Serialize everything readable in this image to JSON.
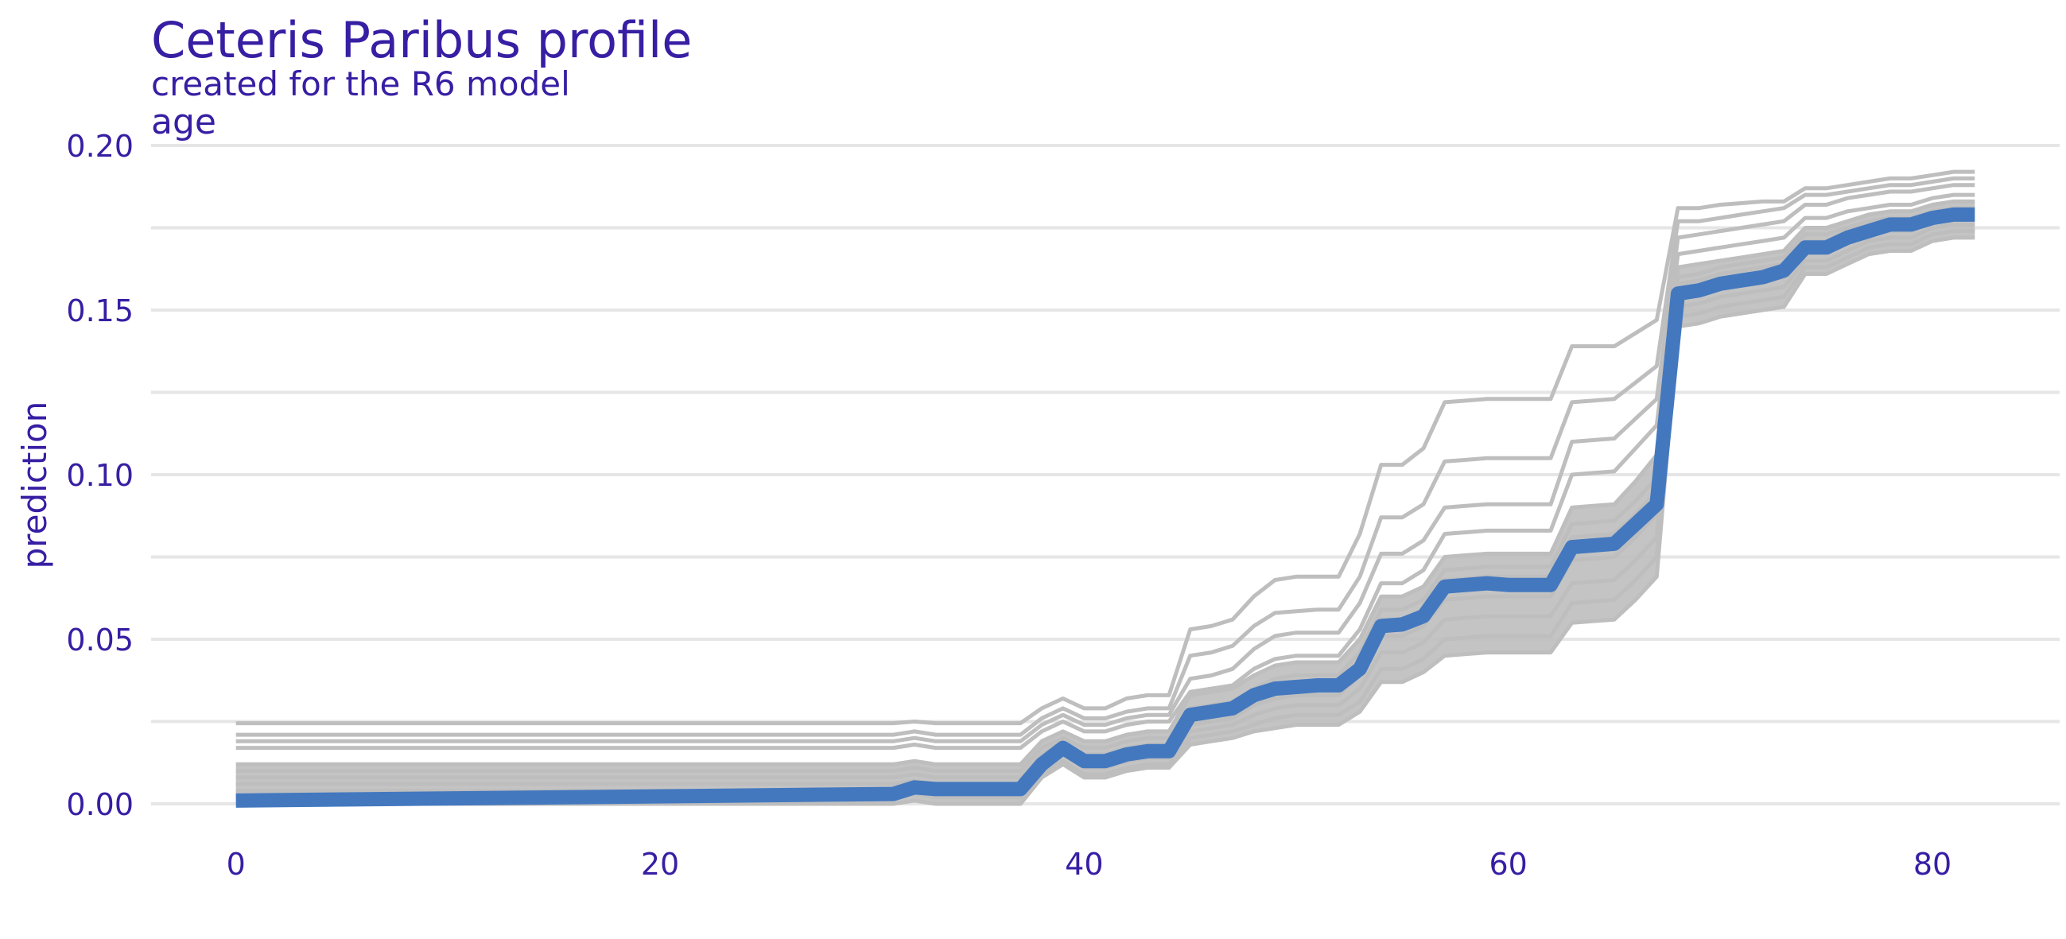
{
  "chart_data": {
    "type": "line",
    "title": "Ceteris Paribus profile",
    "subtitle": "created for the R6 model",
    "facet_label": "age",
    "xlabel": "",
    "ylabel": "prediction",
    "xlim": [
      -4,
      86
    ],
    "ylim": [
      0,
      0.2
    ],
    "x_ticks": [
      "0",
      "20",
      "40",
      "60",
      "80"
    ],
    "y_ticks": [
      "0.00",
      "0.05",
      "0.10",
      "0.15",
      "0.20"
    ],
    "grid": "horizontal",
    "legend": "none",
    "colors": {
      "text": "#371ea3",
      "grid": "#e6e6e6",
      "profiles": "#bebebe",
      "highlight": "#4378bf"
    },
    "x": [
      0,
      31,
      32,
      33,
      37,
      38,
      39,
      40,
      41,
      42,
      43,
      44,
      45,
      46,
      47,
      48,
      49,
      50,
      51,
      52,
      53,
      54,
      55,
      56,
      57,
      58,
      59,
      60,
      61,
      62,
      63,
      64,
      65,
      66,
      67,
      68,
      69,
      70,
      71,
      72,
      73,
      74,
      75,
      76,
      77,
      78,
      79,
      80,
      81,
      82
    ],
    "series": [
      {
        "role": "highlight",
        "values": [
          0.001,
          0.003,
          0.005,
          0.0045,
          0.0045,
          0.012,
          0.017,
          0.013,
          0.013,
          0.015,
          0.016,
          0.016,
          0.027,
          0.028,
          0.029,
          0.033,
          0.035,
          0.0355,
          0.036,
          0.036,
          0.041,
          0.054,
          0.0545,
          0.057,
          0.066,
          0.0665,
          0.067,
          0.0665,
          0.0665,
          0.0665,
          0.078,
          0.0785,
          0.079,
          0.085,
          0.091,
          0.155,
          0.156,
          0.158,
          0.159,
          0.16,
          0.162,
          0.169,
          0.169,
          0.172,
          0.174,
          0.176,
          0.176,
          0.178,
          0.179,
          0.179
        ]
      }
    ],
    "background_profiles": {
      "role": "ceteris-paribus",
      "profiles": [
        [
          0.0245,
          0.0245,
          0.025,
          0.0245,
          0.0245,
          0.029,
          0.032,
          0.029,
          0.029,
          0.032,
          0.033,
          0.033,
          0.053,
          0.054,
          0.056,
          0.063,
          0.068,
          0.069,
          0.069,
          0.069,
          0.082,
          0.103,
          0.103,
          0.108,
          0.122,
          0.1225,
          0.123,
          0.123,
          0.123,
          0.123,
          0.139,
          0.139,
          0.139,
          0.143,
          0.147,
          0.181,
          0.181,
          0.182,
          0.1825,
          0.183,
          0.183,
          0.187,
          0.187,
          0.188,
          0.189,
          0.19,
          0.19,
          0.191,
          0.192,
          0.192
        ],
        [
          0.021,
          0.021,
          0.022,
          0.021,
          0.021,
          0.026,
          0.029,
          0.026,
          0.026,
          0.028,
          0.029,
          0.029,
          0.045,
          0.046,
          0.048,
          0.054,
          0.058,
          0.0585,
          0.059,
          0.059,
          0.069,
          0.087,
          0.087,
          0.091,
          0.104,
          0.1045,
          0.105,
          0.105,
          0.105,
          0.105,
          0.122,
          0.1225,
          0.123,
          0.128,
          0.133,
          0.177,
          0.177,
          0.178,
          0.179,
          0.18,
          0.181,
          0.185,
          0.185,
          0.186,
          0.187,
          0.188,
          0.188,
          0.189,
          0.19,
          0.19
        ],
        [
          0.019,
          0.019,
          0.02,
          0.019,
          0.019,
          0.024,
          0.027,
          0.024,
          0.024,
          0.026,
          0.027,
          0.027,
          0.038,
          0.039,
          0.041,
          0.047,
          0.051,
          0.052,
          0.052,
          0.052,
          0.061,
          0.076,
          0.076,
          0.08,
          0.09,
          0.0905,
          0.091,
          0.091,
          0.091,
          0.091,
          0.11,
          0.1105,
          0.111,
          0.117,
          0.123,
          0.172,
          0.173,
          0.174,
          0.175,
          0.176,
          0.177,
          0.182,
          0.182,
          0.184,
          0.185,
          0.186,
          0.186,
          0.187,
          0.188,
          0.188
        ],
        [
          0.017,
          0.017,
          0.018,
          0.017,
          0.017,
          0.022,
          0.025,
          0.022,
          0.022,
          0.024,
          0.025,
          0.025,
          0.034,
          0.035,
          0.036,
          0.041,
          0.044,
          0.045,
          0.045,
          0.045,
          0.053,
          0.067,
          0.067,
          0.071,
          0.082,
          0.0825,
          0.083,
          0.083,
          0.083,
          0.083,
          0.1,
          0.1005,
          0.101,
          0.108,
          0.115,
          0.167,
          0.168,
          0.169,
          0.17,
          0.171,
          0.172,
          0.178,
          0.178,
          0.18,
          0.181,
          0.182,
          0.182,
          0.184,
          0.185,
          0.185
        ],
        [
          0.012,
          0.012,
          0.013,
          0.012,
          0.012,
          0.019,
          0.022,
          0.019,
          0.019,
          0.021,
          0.022,
          0.022,
          0.033,
          0.034,
          0.035,
          0.039,
          0.042,
          0.043,
          0.043,
          0.043,
          0.05,
          0.063,
          0.063,
          0.066,
          0.075,
          0.0755,
          0.076,
          0.076,
          0.076,
          0.076,
          0.09,
          0.0905,
          0.091,
          0.098,
          0.106,
          0.163,
          0.164,
          0.165,
          0.166,
          0.167,
          0.168,
          0.175,
          0.175,
          0.177,
          0.179,
          0.18,
          0.18,
          0.182,
          0.183,
          0.183
        ],
        [
          0.01,
          0.01,
          0.011,
          0.01,
          0.01,
          0.017,
          0.02,
          0.017,
          0.017,
          0.019,
          0.02,
          0.02,
          0.029,
          0.03,
          0.031,
          0.035,
          0.038,
          0.039,
          0.039,
          0.039,
          0.046,
          0.059,
          0.059,
          0.062,
          0.071,
          0.0715,
          0.072,
          0.072,
          0.072,
          0.072,
          0.085,
          0.0855,
          0.086,
          0.092,
          0.099,
          0.16,
          0.161,
          0.163,
          0.164,
          0.165,
          0.166,
          0.173,
          0.173,
          0.175,
          0.177,
          0.178,
          0.178,
          0.18,
          0.181,
          0.181
        ],
        [
          0.008,
          0.008,
          0.009,
          0.008,
          0.008,
          0.015,
          0.019,
          0.015,
          0.015,
          0.017,
          0.018,
          0.018,
          0.026,
          0.027,
          0.028,
          0.032,
          0.035,
          0.036,
          0.036,
          0.036,
          0.043,
          0.056,
          0.056,
          0.059,
          0.068,
          0.0685,
          0.069,
          0.069,
          0.069,
          0.069,
          0.081,
          0.0815,
          0.082,
          0.088,
          0.095,
          0.158,
          0.159,
          0.161,
          0.162,
          0.163,
          0.164,
          0.171,
          0.171,
          0.174,
          0.176,
          0.177,
          0.177,
          0.179,
          0.18,
          0.18
        ],
        [
          0.006,
          0.006,
          0.007,
          0.006,
          0.006,
          0.013,
          0.017,
          0.013,
          0.013,
          0.015,
          0.016,
          0.016,
          0.024,
          0.025,
          0.026,
          0.03,
          0.032,
          0.033,
          0.033,
          0.033,
          0.039,
          0.051,
          0.051,
          0.054,
          0.062,
          0.0625,
          0.063,
          0.063,
          0.063,
          0.063,
          0.074,
          0.0745,
          0.075,
          0.081,
          0.088,
          0.154,
          0.155,
          0.157,
          0.158,
          0.159,
          0.16,
          0.168,
          0.168,
          0.171,
          0.173,
          0.174,
          0.174,
          0.177,
          0.178,
          0.178
        ],
        [
          0.004,
          0.004,
          0.005,
          0.004,
          0.004,
          0.011,
          0.015,
          0.011,
          0.011,
          0.013,
          0.014,
          0.014,
          0.022,
          0.023,
          0.024,
          0.027,
          0.029,
          0.03,
          0.03,
          0.03,
          0.035,
          0.046,
          0.046,
          0.049,
          0.056,
          0.0565,
          0.057,
          0.057,
          0.057,
          0.057,
          0.067,
          0.0675,
          0.068,
          0.074,
          0.081,
          0.151,
          0.152,
          0.154,
          0.155,
          0.156,
          0.157,
          0.165,
          0.165,
          0.168,
          0.171,
          0.172,
          0.172,
          0.175,
          0.176,
          0.176
        ],
        [
          0.002,
          0.002,
          0.003,
          0.002,
          0.002,
          0.009,
          0.013,
          0.009,
          0.009,
          0.011,
          0.012,
          0.012,
          0.02,
          0.021,
          0.022,
          0.024,
          0.026,
          0.027,
          0.027,
          0.027,
          0.031,
          0.041,
          0.041,
          0.044,
          0.05,
          0.0505,
          0.051,
          0.051,
          0.051,
          0.051,
          0.061,
          0.0615,
          0.062,
          0.068,
          0.075,
          0.148,
          0.149,
          0.151,
          0.152,
          0.153,
          0.154,
          0.163,
          0.163,
          0.166,
          0.169,
          0.17,
          0.17,
          0.173,
          0.174,
          0.174
        ],
        [
          0.0,
          0.0,
          0.001,
          0.0,
          0.0,
          0.008,
          0.012,
          0.008,
          0.008,
          0.01,
          0.011,
          0.011,
          0.018,
          0.019,
          0.02,
          0.022,
          0.023,
          0.024,
          0.024,
          0.024,
          0.028,
          0.037,
          0.037,
          0.04,
          0.045,
          0.0455,
          0.046,
          0.046,
          0.046,
          0.046,
          0.055,
          0.0555,
          0.056,
          0.062,
          0.069,
          0.145,
          0.146,
          0.148,
          0.149,
          0.15,
          0.151,
          0.161,
          0.161,
          0.164,
          0.167,
          0.168,
          0.168,
          0.171,
          0.172,
          0.172
        ]
      ]
    }
  }
}
